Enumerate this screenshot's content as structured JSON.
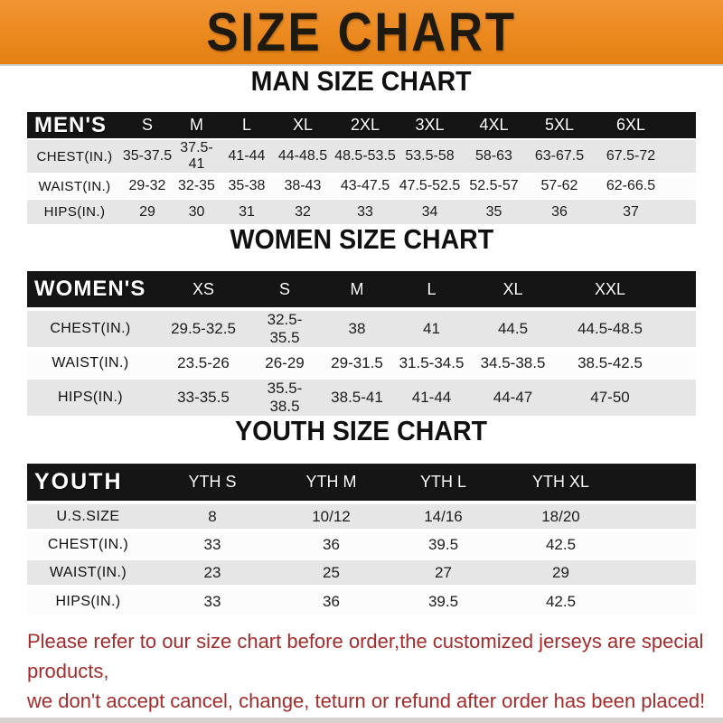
{
  "banner": {
    "title": "SIZE CHART"
  },
  "colors": {
    "banner_orange": "#EC8A1F",
    "table_header_black": "#151515",
    "row_gray": "#E6E6E6",
    "footer_red": "#A62B2B"
  },
  "sections": {
    "men": {
      "title": "MAN SIZE CHART",
      "header": [
        "MEN'S",
        "S",
        "M",
        "L",
        "XL",
        "2XL",
        "3XL",
        "4XL",
        "5XL",
        "6XL"
      ],
      "rows": [
        {
          "label": "CHEST(IN.)",
          "values": [
            "35-37.5",
            "37.5-41",
            "41-44",
            "44-48.5",
            "48.5-53.5",
            "53.5-58",
            "58-63",
            "63-67.5",
            "67.5-72"
          ]
        },
        {
          "label": "WAIST(IN.)",
          "values": [
            "29-32",
            "32-35",
            "35-38",
            "38-43",
            "43-47.5",
            "47.5-52.5",
            "52.5-57",
            "57-62",
            "62-66.5"
          ]
        },
        {
          "label": "HIPS(IN.)",
          "values": [
            "29",
            "30",
            "31",
            "32",
            "33",
            "34",
            "35",
            "36",
            "37"
          ]
        }
      ]
    },
    "women": {
      "title": "WOMEN SIZE CHART",
      "header": [
        "WOMEN'S",
        "XS",
        "S",
        "M",
        "L",
        "XL",
        "XXL"
      ],
      "rows": [
        {
          "label": "CHEST(IN.)",
          "values": [
            "29.5-32.5",
            "32.5-35.5",
            "38",
            "41",
            "44.5",
            "44.5-48.5"
          ]
        },
        {
          "label": "WAIST(IN.)",
          "values": [
            "23.5-26",
            "26-29",
            "29-31.5",
            "31.5-34.5",
            "34.5-38.5",
            "38.5-42.5"
          ]
        },
        {
          "label": "HIPS(IN.)",
          "values": [
            "33-35.5",
            "35.5-38.5",
            "38.5-41",
            "41-44",
            "44-47",
            "47-50"
          ]
        }
      ]
    },
    "youth": {
      "title": "YOUTH SIZE CHART",
      "header": [
        "YOUTH",
        "YTH S",
        "YTH M",
        "YTH L",
        "YTH XL"
      ],
      "rows": [
        {
          "label": "U.S.SIZE",
          "values": [
            "8",
            "10/12",
            "14/16",
            "18/20"
          ]
        },
        {
          "label": "CHEST(IN.)",
          "values": [
            "33",
            "36",
            "39.5",
            "42.5"
          ]
        },
        {
          "label": "WAIST(IN.)",
          "values": [
            "23",
            "25",
            "27",
            "29"
          ]
        },
        {
          "label": "HIPS(IN.)",
          "values": [
            "33",
            "36",
            "39.5",
            "42.5"
          ]
        }
      ]
    }
  },
  "footer": {
    "line1": "Please refer to our size chart before order,the customized jerseys are special products,",
    "line2": "we don't accept cancel, change, teturn or refund after order has been placed!"
  }
}
